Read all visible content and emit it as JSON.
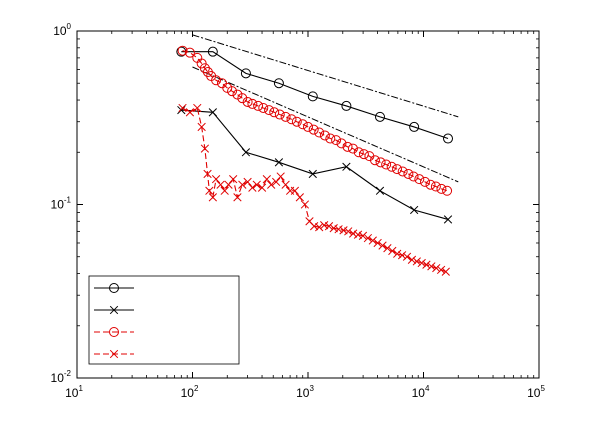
{
  "chart_data": {
    "type": "line",
    "xscale": "log",
    "yscale": "log",
    "xlim": [
      10,
      100000
    ],
    "ylim": [
      0.01,
      1
    ],
    "grid": false,
    "legend_position": "bottom-left",
    "x_ticks": [
      {
        "value": 10,
        "base": "10",
        "exp": "1"
      },
      {
        "value": 100,
        "base": "10",
        "exp": "2"
      },
      {
        "value": 1000,
        "base": "10",
        "exp": "3"
      },
      {
        "value": 10000,
        "base": "10",
        "exp": "4"
      },
      {
        "value": 100000,
        "base": "10",
        "exp": "5"
      }
    ],
    "y_ticks": [
      {
        "value": 0.01,
        "base": "10",
        "exp": "-2"
      },
      {
        "value": 0.1,
        "base": "10",
        "exp": "-1"
      },
      {
        "value": 1,
        "base": "10",
        "exp": "0"
      }
    ],
    "series": [
      {
        "color": "#000000",
        "marker": "circle",
        "dash": "solid",
        "x": [
          80,
          150,
          290,
          560,
          1100,
          2150,
          4200,
          8300,
          16300
        ],
        "y": [
          0.76,
          0.76,
          0.57,
          0.5,
          0.42,
          0.37,
          0.32,
          0.28,
          0.24
        ]
      },
      {
        "color": "#000000",
        "marker": "x",
        "dash": "solid",
        "x": [
          80,
          150,
          290,
          560,
          1100,
          2150,
          4200,
          8300,
          16300
        ],
        "y": [
          0.35,
          0.34,
          0.2,
          0.175,
          0.15,
          0.165,
          0.12,
          0.093,
          0.082
        ]
      },
      {
        "color": "#e00000",
        "marker": "circle",
        "dash": "dashed",
        "x": [
          82,
          95,
          110,
          120,
          128,
          136,
          145,
          160,
          180,
          200,
          220,
          245,
          270,
          300,
          330,
          370,
          410,
          460,
          510,
          570,
          640,
          720,
          800,
          900,
          1000,
          1120,
          1250,
          1400,
          1560,
          1750,
          1950,
          2200,
          2450,
          2750,
          3050,
          3400,
          3800,
          4250,
          4750,
          5300,
          5900,
          6600,
          7400,
          8200,
          9200,
          10300,
          11500,
          12800,
          14300,
          16000
        ],
        "y": [
          0.77,
          0.75,
          0.7,
          0.65,
          0.61,
          0.58,
          0.55,
          0.52,
          0.5,
          0.47,
          0.45,
          0.43,
          0.41,
          0.39,
          0.38,
          0.37,
          0.36,
          0.35,
          0.34,
          0.33,
          0.32,
          0.31,
          0.3,
          0.29,
          0.28,
          0.27,
          0.26,
          0.25,
          0.24,
          0.235,
          0.225,
          0.215,
          0.21,
          0.2,
          0.195,
          0.19,
          0.18,
          0.175,
          0.17,
          0.165,
          0.16,
          0.155,
          0.15,
          0.145,
          0.14,
          0.135,
          0.13,
          0.127,
          0.123,
          0.12
        ]
      },
      {
        "color": "#e00000",
        "marker": "x",
        "dash": "dashed",
        "x": [
          82,
          95,
          110,
          120,
          128,
          135,
          140,
          150,
          160,
          175,
          190,
          205,
          225,
          245,
          270,
          300,
          330,
          360,
          400,
          440,
          480,
          530,
          580,
          640,
          700,
          770,
          850,
          940,
          1030,
          1130,
          1250,
          1380,
          1520,
          1670,
          1840,
          2030,
          2230,
          2460,
          2710,
          2990,
          3300,
          3640,
          4010,
          4420,
          4870,
          5370,
          5920,
          6530,
          7200,
          7940,
          8750,
          9650,
          10600,
          11700,
          12900,
          14200,
          15600
        ],
        "y": [
          0.36,
          0.34,
          0.36,
          0.28,
          0.21,
          0.15,
          0.12,
          0.11,
          0.14,
          0.13,
          0.12,
          0.13,
          0.14,
          0.11,
          0.13,
          0.135,
          0.125,
          0.13,
          0.125,
          0.14,
          0.13,
          0.135,
          0.145,
          0.13,
          0.12,
          0.12,
          0.11,
          0.1,
          0.08,
          0.075,
          0.074,
          0.076,
          0.075,
          0.073,
          0.072,
          0.071,
          0.07,
          0.068,
          0.067,
          0.066,
          0.064,
          0.062,
          0.06,
          0.058,
          0.056,
          0.054,
          0.052,
          0.051,
          0.05,
          0.048,
          0.047,
          0.046,
          0.045,
          0.044,
          0.043,
          0.042,
          0.041
        ]
      }
    ],
    "reference_lines": [
      {
        "color": "#000000",
        "dash": "dashdot",
        "x": [
          100,
          20000
        ],
        "y": [
          0.95,
          0.32
        ]
      },
      {
        "color": "#000000",
        "dash": "dashdot",
        "x": [
          100,
          20000
        ],
        "y": [
          0.62,
          0.135
        ]
      }
    ],
    "legend_entries": [
      {
        "color": "#000000",
        "marker": "circle",
        "dash": "solid",
        "label": ""
      },
      {
        "color": "#000000",
        "marker": "x",
        "dash": "solid",
        "label": ""
      },
      {
        "color": "#e00000",
        "marker": "circle",
        "dash": "dashed",
        "label": ""
      },
      {
        "color": "#e00000",
        "marker": "x",
        "dash": "dashed",
        "label": ""
      }
    ]
  }
}
